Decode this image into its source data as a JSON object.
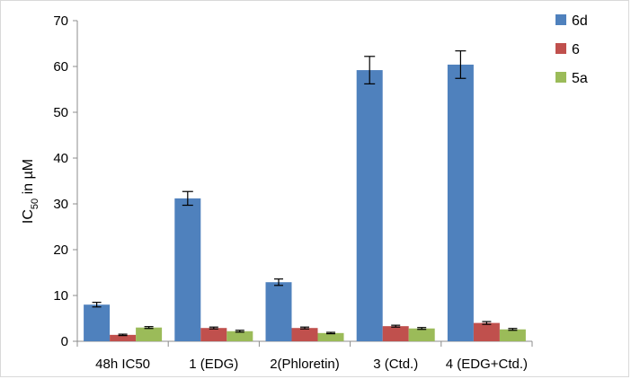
{
  "chart_data": {
    "type": "bar",
    "title": "",
    "xlabel": "",
    "ylabel": "IC",
    "ylabel_sub": "50",
    "ylabel_suffix": " in µM",
    "ylim": [
      0,
      70
    ],
    "yticks": [
      0,
      10,
      20,
      30,
      40,
      50,
      60,
      70
    ],
    "grid": false,
    "legend_position": "top-right",
    "categories": [
      "48h IC50",
      "1 (EDG)",
      "2(Phloretin)",
      "3 (Ctd.)",
      "4 (EDG+Ctd.)"
    ],
    "series": [
      {
        "name": "6d",
        "color": "#4f81bd",
        "values": [
          8.0,
          31.2,
          12.9,
          59.2,
          60.4
        ],
        "errors": [
          0.5,
          1.5,
          0.7,
          3.0,
          3.0
        ]
      },
      {
        "name": "6",
        "color": "#c0504d",
        "values": [
          1.4,
          2.9,
          2.9,
          3.3,
          4.0
        ],
        "errors": [
          0.15,
          0.2,
          0.2,
          0.2,
          0.3
        ]
      },
      {
        "name": "5a",
        "color": "#9bbb59",
        "values": [
          3.0,
          2.2,
          1.8,
          2.8,
          2.6
        ],
        "errors": [
          0.2,
          0.2,
          0.15,
          0.2,
          0.2
        ]
      }
    ]
  }
}
